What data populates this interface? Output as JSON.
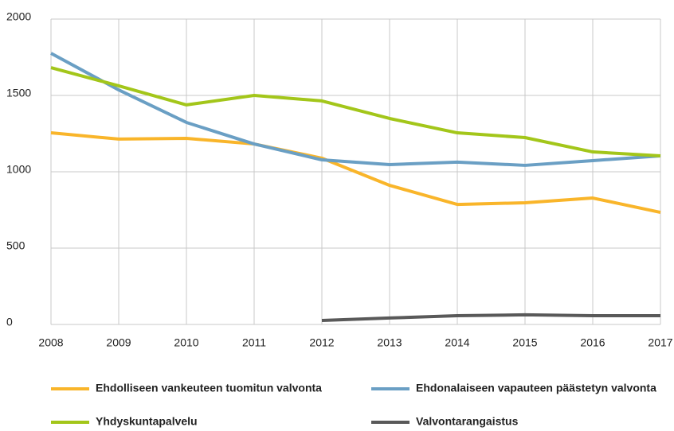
{
  "chart_data": {
    "type": "line",
    "categories": [
      "2008",
      "2009",
      "2010",
      "2011",
      "2012",
      "2013",
      "2014",
      "2015",
      "2016",
      "2017"
    ],
    "series": [
      {
        "name": "Ehdolliseen vankeuteen tuomitun valvonta",
        "color": "#f9b52a",
        "values": [
          1255,
          1214,
          1219,
          1182,
          1089,
          911,
          786,
          797,
          828,
          734
        ]
      },
      {
        "name": "Ehdonalaiseen vapauteen päästetyn valvonta",
        "color": "#6a9fc4",
        "values": [
          1776,
          1536,
          1323,
          1182,
          1078,
          1047,
          1063,
          1042,
          1073,
          1104
        ]
      },
      {
        "name": "Yhdyskuntapalvelu",
        "color": "#a3c61a",
        "values": [
          1682,
          1563,
          1438,
          1500,
          1464,
          1349,
          1255,
          1224,
          1130,
          1104
        ]
      },
      {
        "name": "Valvontarangaistus",
        "color": "#595959",
        "values": [
          null,
          null,
          null,
          null,
          26,
          42,
          57,
          63,
          57,
          57
        ]
      }
    ],
    "ylim": [
      0,
      2000
    ],
    "yticks": [
      0,
      500,
      1000,
      1500,
      2000
    ],
    "grid": true,
    "legend": "bottom"
  }
}
